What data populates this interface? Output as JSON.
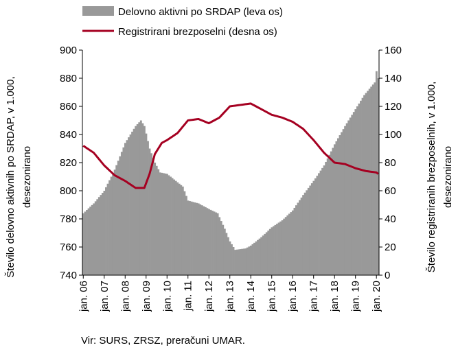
{
  "chart_data": {
    "type": "area+line",
    "legend": [
      {
        "label": "Delovno aktivni po SRDAP (leva os)",
        "color": "#999999",
        "kind": "area"
      },
      {
        "label": "Registrirani brezposelni (desna os)",
        "color": "#a50021",
        "kind": "line"
      }
    ],
    "ylabel_left": [
      "Število delovno aktivnih po SRDAP, v 1.000,",
      "desezonirano"
    ],
    "ylabel_right": [
      "Število registriranih brezposelnih, v 1.000,",
      "desezonirano"
    ],
    "ylim_left": [
      740,
      900
    ],
    "ylim_right": [
      0,
      160
    ],
    "yticks_left": [
      "740",
      "760",
      "780",
      "800",
      "820",
      "840",
      "860",
      "880",
      "900"
    ],
    "yticks_right": [
      "0",
      "20",
      "40",
      "60",
      "80",
      "100",
      "120",
      "140",
      "160"
    ],
    "x_tick_labels": [
      "jan. 06",
      "jan. 07",
      "jan. 08",
      "jan. 09",
      "jan. 10",
      "jan. 11",
      "jan. 12",
      "jan. 13",
      "jan. 14",
      "jan. 15",
      "jan. 16",
      "jan. 17",
      "jan. 18",
      "jan. 19",
      "jan. 20"
    ],
    "x_start": "2006-01",
    "x_end": "2020-02",
    "series": [
      {
        "name": "Delovno aktivni po SRDAP (leva os)",
        "axis": "left",
        "points": [
          [
            "2006-01",
            784
          ],
          [
            "2006-07",
            791
          ],
          [
            "2007-01",
            800
          ],
          [
            "2007-07",
            815
          ],
          [
            "2008-01",
            834
          ],
          [
            "2008-07",
            846
          ],
          [
            "2008-10",
            850
          ],
          [
            "2008-12",
            846
          ],
          [
            "2009-03",
            830
          ],
          [
            "2009-06",
            820
          ],
          [
            "2009-09",
            813
          ],
          [
            "2010-01",
            812
          ],
          [
            "2010-06",
            807
          ],
          [
            "2010-10",
            803
          ],
          [
            "2011-01",
            793
          ],
          [
            "2011-07",
            791
          ],
          [
            "2012-01",
            787
          ],
          [
            "2012-06",
            784
          ],
          [
            "2012-10",
            773
          ],
          [
            "2013-01",
            764
          ],
          [
            "2013-04",
            758
          ],
          [
            "2013-10",
            759
          ],
          [
            "2014-01",
            761
          ],
          [
            "2014-07",
            767
          ],
          [
            "2015-01",
            774
          ],
          [
            "2015-07",
            779
          ],
          [
            "2016-01",
            786
          ],
          [
            "2016-07",
            797
          ],
          [
            "2017-01",
            807
          ],
          [
            "2017-07",
            818
          ],
          [
            "2018-01",
            833
          ],
          [
            "2018-07",
            846
          ],
          [
            "2019-01",
            858
          ],
          [
            "2019-06",
            868
          ],
          [
            "2019-12",
            877
          ],
          [
            "2020-01",
            885
          ],
          [
            "2020-02",
            880
          ]
        ]
      },
      {
        "name": "Registrirani brezposelni (desna os)",
        "axis": "right",
        "points": [
          [
            "2006-01",
            92
          ],
          [
            "2006-07",
            87
          ],
          [
            "2007-01",
            78
          ],
          [
            "2007-07",
            71
          ],
          [
            "2008-01",
            67
          ],
          [
            "2008-07",
            62
          ],
          [
            "2008-12",
            62
          ],
          [
            "2009-03",
            72
          ],
          [
            "2009-06",
            86
          ],
          [
            "2009-10",
            94
          ],
          [
            "2010-01",
            96
          ],
          [
            "2010-07",
            101
          ],
          [
            "2011-01",
            110
          ],
          [
            "2011-07",
            111
          ],
          [
            "2012-01",
            108
          ],
          [
            "2012-07",
            112
          ],
          [
            "2013-01",
            120
          ],
          [
            "2013-07",
            121
          ],
          [
            "2014-01",
            122
          ],
          [
            "2014-07",
            118
          ],
          [
            "2015-01",
            114
          ],
          [
            "2015-07",
            112
          ],
          [
            "2016-01",
            109
          ],
          [
            "2016-07",
            104
          ],
          [
            "2017-01",
            96
          ],
          [
            "2017-07",
            87
          ],
          [
            "2018-01",
            80
          ],
          [
            "2018-07",
            79
          ],
          [
            "2019-01",
            76
          ],
          [
            "2019-07",
            74
          ],
          [
            "2020-01",
            73
          ],
          [
            "2020-02",
            72
          ]
        ]
      }
    ],
    "grid": false,
    "legend_position": "top"
  },
  "source_note": "Vir: SURS, ZRSZ, preračuni UMAR."
}
